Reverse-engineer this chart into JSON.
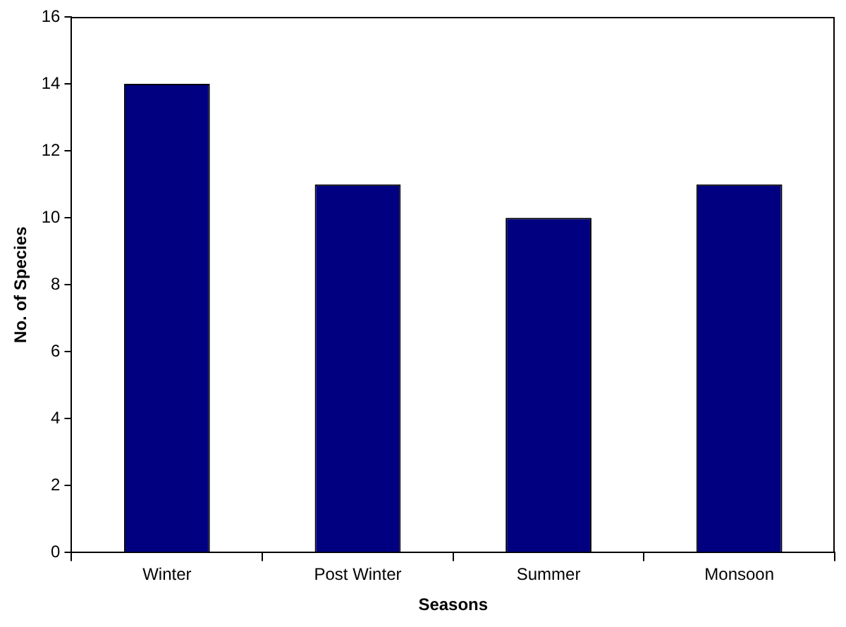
{
  "chart_data": {
    "type": "bar",
    "xlabel": "Seasons",
    "ylabel": "No. of Species",
    "categories": [
      "Winter",
      "Post Winter",
      "Summer",
      "Monsoon"
    ],
    "values": [
      14,
      11,
      10,
      11
    ],
    "color": "#000080",
    "ylim": [
      0,
      16
    ],
    "yticks": [
      0,
      2,
      4,
      6,
      8,
      10,
      12,
      14,
      16
    ],
    "grid": false,
    "legend": false
  }
}
